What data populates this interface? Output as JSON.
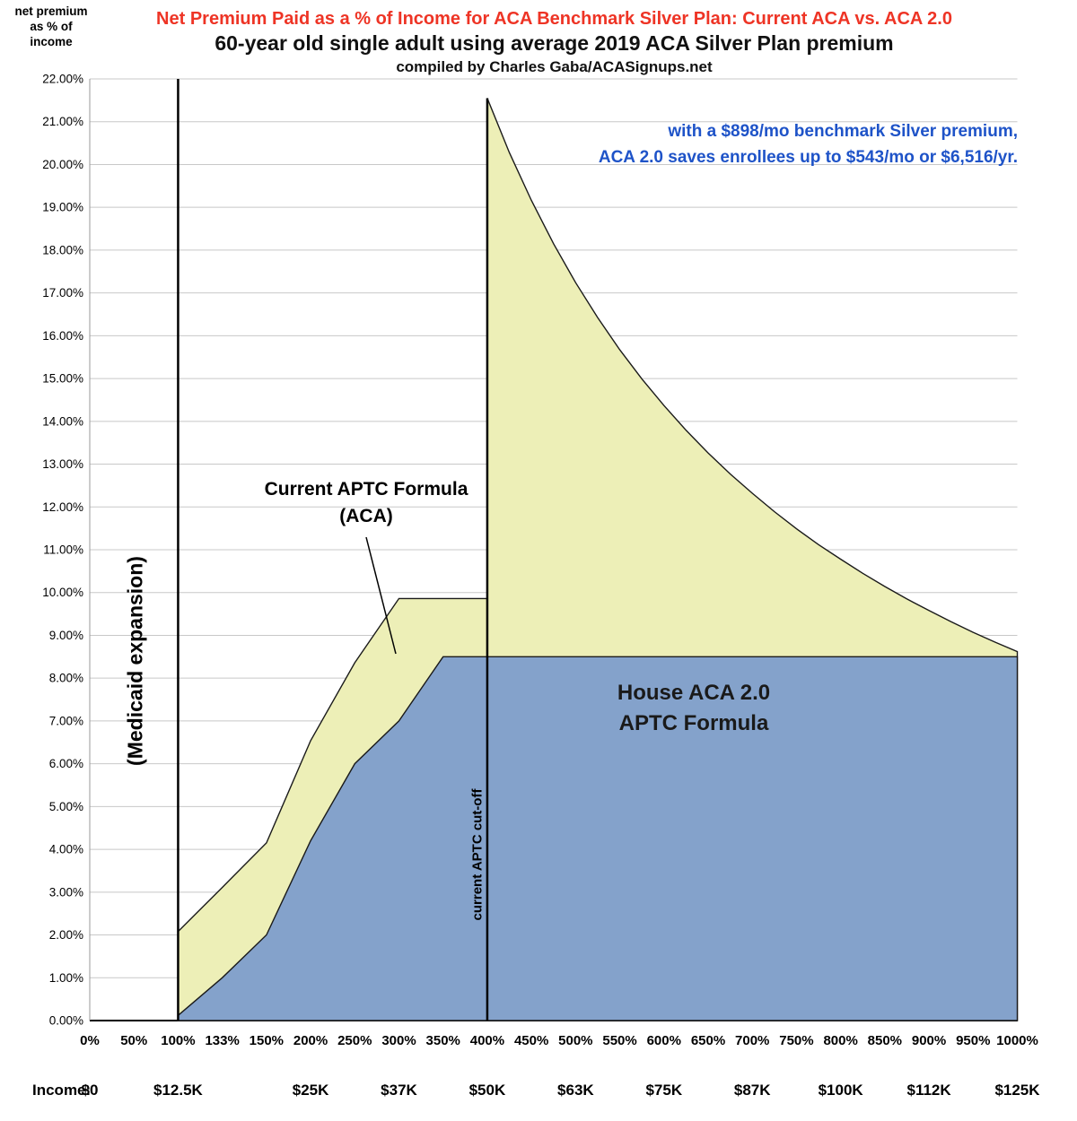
{
  "header": {
    "title_line1": "Net Premium Paid as a % of Income for ACA Benchmark Silver Plan: Current ACA vs. ACA 2.0",
    "title_line2": "60-year old single adult using average 2019 ACA Silver Plan premium",
    "title_line3": "compiled by Charles Gaba/ACASignups.net",
    "title_color": "#ee3425"
  },
  "y_axis_label": {
    "line1": "net premium",
    "line2": "as % of",
    "line3": "income"
  },
  "chart_data": {
    "type": "area",
    "title": "Net Premium Paid as a % of Income for ACA Benchmark Silver Plan: Current ACA vs. ACA 2.0",
    "x_categories_fpl": [
      "0%",
      "50%",
      "100%",
      "133%",
      "150%",
      "200%",
      "250%",
      "300%",
      "350%",
      "400%",
      "450%",
      "500%",
      "550%",
      "600%",
      "650%",
      "700%",
      "750%",
      "800%",
      "850%",
      "900%",
      "950%",
      "1000%"
    ],
    "x_category_values": [
      0,
      50,
      100,
      133,
      150,
      200,
      250,
      300,
      350,
      400,
      450,
      500,
      550,
      600,
      650,
      700,
      750,
      800,
      850,
      900,
      950,
      1000
    ],
    "y_min": 0,
    "y_max": 22,
    "y_step": 1,
    "grid": true,
    "gridline_color": "#c8c8c8",
    "series": [
      {
        "name": "Current APTC Formula (ACA)",
        "fill": "#edefb7",
        "points_fpl_pct": [
          [
            100,
            2.08
          ],
          [
            133,
            3.11
          ],
          [
            150,
            4.15
          ],
          [
            200,
            6.54
          ],
          [
            250,
            8.36
          ],
          [
            300,
            9.86
          ],
          [
            400,
            9.86
          ],
          [
            400,
            21.55
          ],
          [
            425,
            20.28
          ],
          [
            450,
            19.16
          ],
          [
            475,
            18.15
          ],
          [
            500,
            17.24
          ],
          [
            525,
            16.42
          ],
          [
            550,
            15.67
          ],
          [
            575,
            14.99
          ],
          [
            600,
            14.37
          ],
          [
            625,
            13.79
          ],
          [
            650,
            13.26
          ],
          [
            675,
            12.77
          ],
          [
            700,
            12.32
          ],
          [
            725,
            11.89
          ],
          [
            750,
            11.49
          ],
          [
            775,
            11.12
          ],
          [
            800,
            10.78
          ],
          [
            825,
            10.45
          ],
          [
            850,
            10.14
          ],
          [
            875,
            9.85
          ],
          [
            900,
            9.58
          ],
          [
            925,
            9.32
          ],
          [
            950,
            9.07
          ],
          [
            975,
            8.84
          ],
          [
            1000,
            8.62
          ]
        ]
      },
      {
        "name": "House ACA 2.0 APTC Formula",
        "fill": "#84a2cb",
        "points_fpl_pct": [
          [
            100,
            0.12
          ],
          [
            133,
            1.0
          ],
          [
            150,
            2.0
          ],
          [
            200,
            4.2
          ],
          [
            250,
            6.0
          ],
          [
            300,
            7.0
          ],
          [
            350,
            8.5
          ],
          [
            1000,
            8.5
          ]
        ]
      }
    ],
    "vertical_markers": [
      {
        "fpl": 100,
        "label": "(Medicaid expansion)"
      },
      {
        "fpl": 400,
        "label": "current APTC cut-off",
        "top_pct": 21.55
      }
    ]
  },
  "annotations": {
    "savings_note": {
      "line1": "with a $898/mo benchmark Silver premium,",
      "line2": "ACA 2.0 saves enrollees up to $543/mo or $6,516/yr.",
      "color": "#1e53c8"
    },
    "aca_label": {
      "line1": "Current APTC Formula",
      "line2": "(ACA)"
    },
    "aca20_label": {
      "line1": "House ACA 2.0",
      "line2": "APTC Formula"
    }
  },
  "income_axis": {
    "label": "Income:",
    "values": [
      {
        "fpl": 0,
        "text": "$0"
      },
      {
        "fpl": 100,
        "text": "$12.5K"
      },
      {
        "fpl": 200,
        "text": "$25K"
      },
      {
        "fpl": 300,
        "text": "$37K"
      },
      {
        "fpl": 400,
        "text": "$50K"
      },
      {
        "fpl": 500,
        "text": "$63K"
      },
      {
        "fpl": 600,
        "text": "$75K"
      },
      {
        "fpl": 700,
        "text": "$87K"
      },
      {
        "fpl": 800,
        "text": "$100K"
      },
      {
        "fpl": 900,
        "text": "$112K"
      },
      {
        "fpl": 1000,
        "text": "$125K"
      }
    ]
  }
}
